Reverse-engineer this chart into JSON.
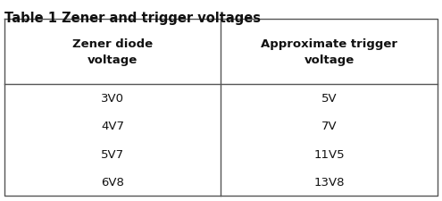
{
  "title": "Table 1 Zener and trigger voltages",
  "col1_header": "Zener diode\nvoltage",
  "col2_header": "Approximate trigger\nvoltage",
  "col1_data": [
    "3V0",
    "4V7",
    "5V7",
    "6V8"
  ],
  "col2_data": [
    "5V",
    "7V",
    "11V5",
    "13V8"
  ],
  "bg_color": "#ffffff",
  "cell_bg": "#ffffff",
  "border_color": "#555555",
  "text_color": "#111111",
  "title_fontsize": 10.5,
  "header_fontsize": 9.5,
  "data_fontsize": 9.5,
  "fig_width": 4.95,
  "fig_height": 2.26
}
